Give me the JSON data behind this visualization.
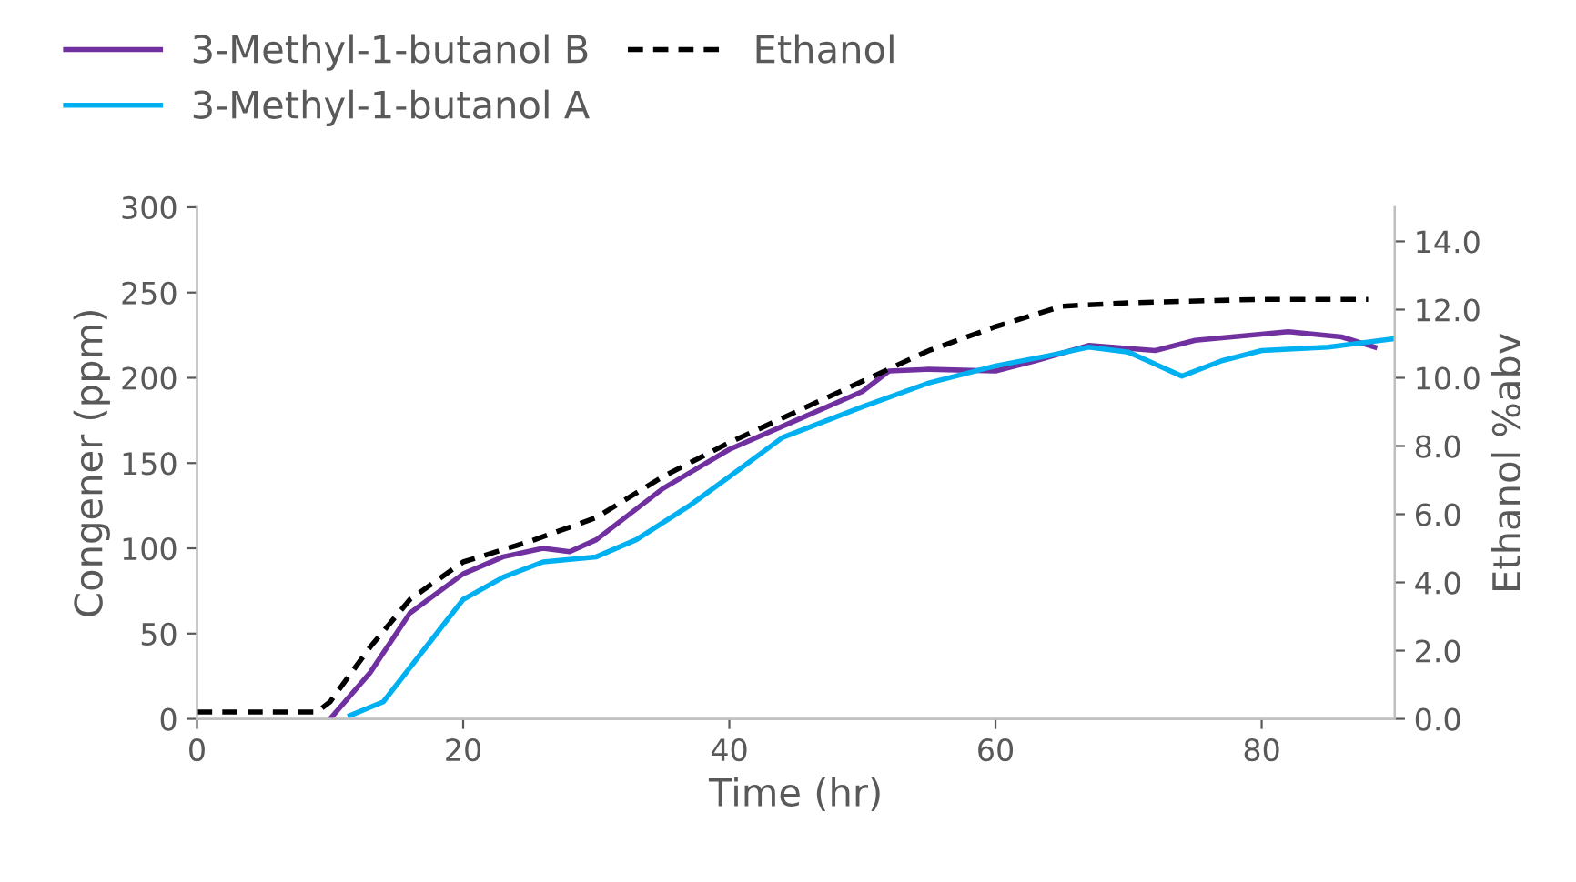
{
  "chart_data": {
    "type": "line",
    "xlabel": "Time (hr)",
    "ylabel": "Congener (ppm)",
    "y2label": "Ethanol %abv",
    "xlim": [
      0,
      90
    ],
    "xticks": [
      0,
      20,
      40,
      60,
      80
    ],
    "ylim": [
      0,
      300
    ],
    "yticks": [
      0,
      50,
      100,
      150,
      200,
      250,
      300
    ],
    "y2lim": [
      0,
      15
    ],
    "y2ticks": [
      {
        "value": 0,
        "label": "0.0"
      },
      {
        "value": 2,
        "label": "2.0"
      },
      {
        "value": 4,
        "label": "4.0"
      },
      {
        "value": 6,
        "label": "6.0"
      },
      {
        "value": 8,
        "label": "8.0"
      },
      {
        "value": 10,
        "label": "10.0"
      },
      {
        "value": 12,
        "label": "12.0"
      },
      {
        "value": 14,
        "label": "14.0"
      }
    ],
    "grid": false,
    "legend": "top",
    "marker": "none",
    "series": [
      {
        "name": "3-Methyl-1-butanol B",
        "color": "#7030a0",
        "line_style": "solid",
        "x": [
          10,
          13,
          16,
          20,
          23,
          26,
          28,
          30,
          35,
          40,
          45,
          50,
          52,
          55,
          60,
          63,
          67,
          72,
          75,
          82,
          86,
          88.5
        ],
        "values": [
          0,
          27,
          62,
          85,
          95,
          100,
          98,
          105,
          135,
          158,
          175,
          192,
          204,
          205,
          204,
          210,
          219,
          216,
          222,
          227,
          224,
          218
        ]
      },
      {
        "name": "3-Methyl-1-butanol A",
        "color": "#00b0f0",
        "line_style": "solid",
        "x": [
          11.5,
          14,
          17,
          20,
          23,
          26,
          30,
          33,
          37,
          40,
          44,
          50,
          55,
          60,
          64,
          67,
          70,
          74,
          77,
          80,
          85,
          90
        ],
        "values": [
          2,
          10,
          40,
          70,
          83,
          92,
          95,
          105,
          125,
          142,
          165,
          183,
          197,
          207,
          213,
          218,
          215,
          201,
          210,
          216,
          218,
          223
        ]
      },
      {
        "name": "Ethanol",
        "color": "#000000",
        "line_style": "dashed",
        "axis": "y2",
        "x": [
          0,
          9,
          10,
          13,
          16,
          20,
          25,
          30,
          35,
          40,
          45,
          50,
          55,
          60,
          65,
          70,
          80,
          88
        ],
        "values": [
          0.2,
          0.2,
          0.5,
          2.1,
          3.5,
          4.6,
          5.2,
          5.9,
          7.1,
          8.1,
          9.0,
          9.9,
          10.8,
          11.5,
          12.1,
          12.2,
          12.3,
          12.3
        ]
      }
    ]
  }
}
